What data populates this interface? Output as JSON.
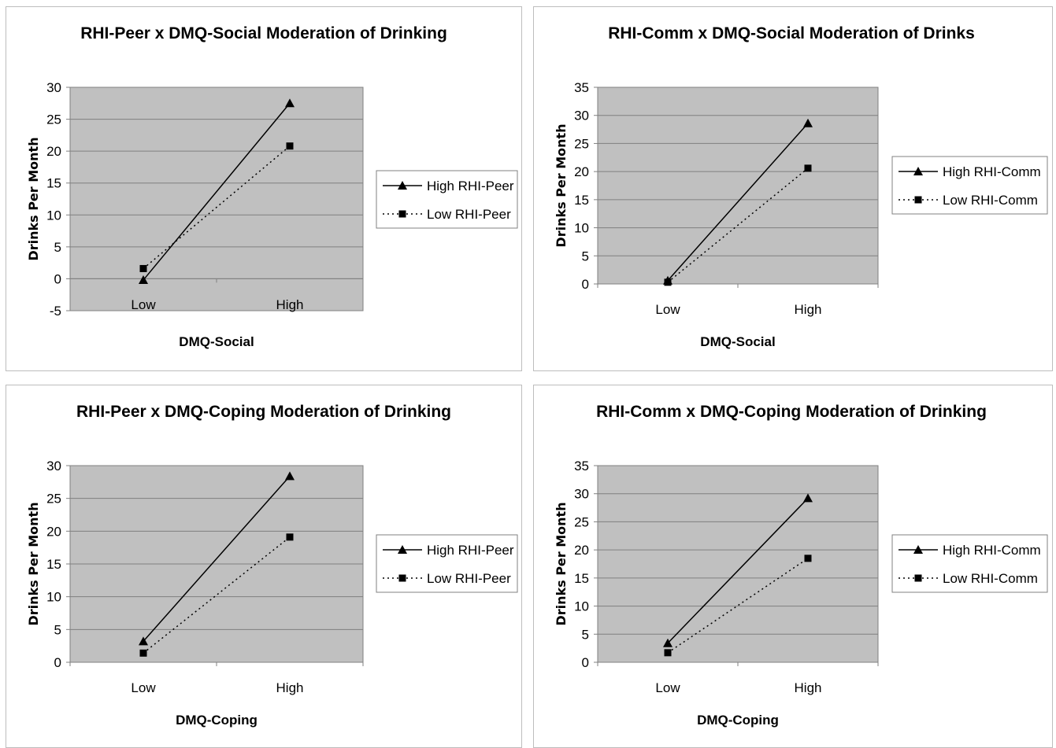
{
  "chart_data": [
    {
      "type": "line",
      "title": "RHI-Peer x DMQ-Social Moderation of Drinking",
      "xlabel": "DMQ-Social",
      "ylabel": "Drinks Per Month",
      "categories": [
        "Low",
        "High"
      ],
      "ylim": [
        -5,
        30
      ],
      "yticks": [
        -5,
        0,
        5,
        10,
        15,
        20,
        25,
        30
      ],
      "grid": true,
      "legend_position": "right",
      "series": [
        {
          "name": "High RHI-Peer",
          "values": [
            -0.2,
            27.5
          ],
          "marker": "triangle",
          "line": "solid"
        },
        {
          "name": "Low RHI-Peer",
          "values": [
            1.6,
            20.8
          ],
          "marker": "square",
          "line": "dotted"
        }
      ]
    },
    {
      "type": "line",
      "title": "RHI-Comm x DMQ-Social Moderation of Drinks",
      "xlabel": "DMQ-Social",
      "ylabel": "Drinks Per Month",
      "categories": [
        "Low",
        "High"
      ],
      "ylim": [
        0,
        35
      ],
      "yticks": [
        0,
        5,
        10,
        15,
        20,
        25,
        30,
        35
      ],
      "grid": true,
      "legend_position": "right",
      "series": [
        {
          "name": "High RHI-Comm",
          "values": [
            0.6,
            28.6
          ],
          "marker": "triangle",
          "line": "solid"
        },
        {
          "name": "Low RHI-Comm",
          "values": [
            0.3,
            20.6
          ],
          "marker": "square",
          "line": "dotted"
        }
      ]
    },
    {
      "type": "line",
      "title": "RHI-Peer x DMQ-Coping Moderation of Drinking",
      "xlabel": "DMQ-Coping",
      "ylabel": "Drinks Per Month",
      "categories": [
        "Low",
        "High"
      ],
      "ylim": [
        0,
        30
      ],
      "yticks": [
        0,
        5,
        10,
        15,
        20,
        25,
        30
      ],
      "grid": true,
      "legend_position": "right",
      "series": [
        {
          "name": "High RHI-Peer",
          "values": [
            3.2,
            28.4
          ],
          "marker": "triangle",
          "line": "solid"
        },
        {
          "name": "Low RHI-Peer",
          "values": [
            1.4,
            19.1
          ],
          "marker": "square",
          "line": "dotted"
        }
      ]
    },
    {
      "type": "line",
      "title": "RHI-Comm x DMQ-Coping Moderation of Drinking",
      "xlabel": "DMQ-Coping",
      "ylabel": "Drinks Per Month",
      "categories": [
        "Low",
        "High"
      ],
      "ylim": [
        0,
        35
      ],
      "yticks": [
        0,
        5,
        10,
        15,
        20,
        25,
        30,
        35
      ],
      "grid": true,
      "legend_position": "right",
      "series": [
        {
          "name": "High RHI-Comm",
          "values": [
            3.4,
            29.2
          ],
          "marker": "triangle",
          "line": "solid"
        },
        {
          "name": "Low RHI-Comm",
          "values": [
            1.7,
            18.5
          ],
          "marker": "square",
          "line": "dotted"
        }
      ]
    }
  ],
  "colors": {
    "plot_background": "#c0c0c0",
    "gridline": "#7f7f7f",
    "series_line": "#000000"
  }
}
